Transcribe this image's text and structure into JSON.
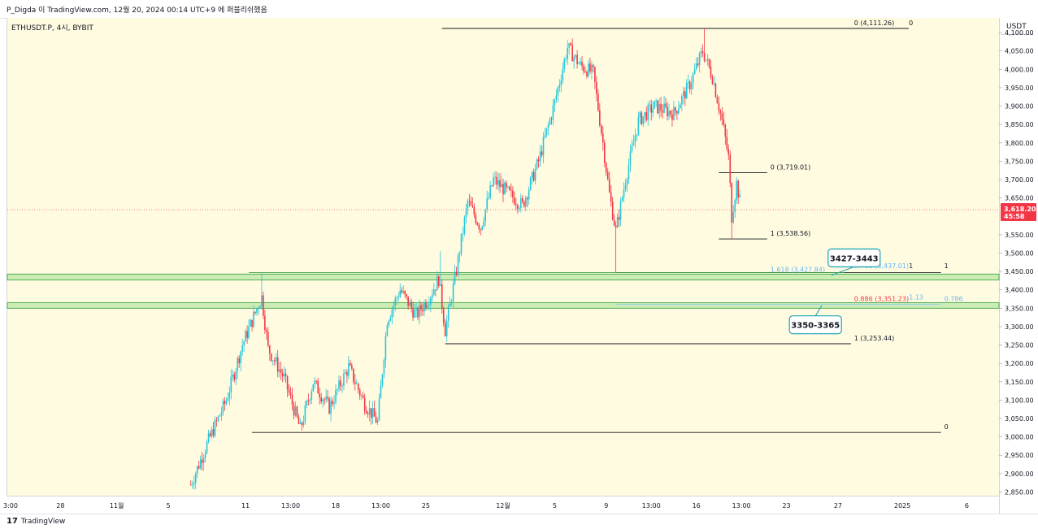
{
  "header": {
    "publish_info": "P_Digda 이 TradingView.com, 12월 20, 2024 00:14 UTC+9 에 퍼블리쉬했음"
  },
  "symbol": "ETHUSDT.P, 4시, BYBIT",
  "currency": "USDT",
  "current_price": {
    "value": "3,618.20",
    "countdown": "45:58",
    "color": "#f23645",
    "y": 3618.2
  },
  "footer": {
    "logo": "17",
    "brand": "TradingView"
  },
  "colors": {
    "up": "#26c6da",
    "down": "#f23645",
    "zone": "#b9e8a6",
    "zone_border": "#2e9c3a",
    "background": "#fffbe0"
  },
  "chart_data": {
    "type": "candlestick",
    "ylim": [
      2840,
      4140
    ],
    "y_ticks": [
      {
        "value": 4100,
        "label": "4,100.00"
      },
      {
        "value": 4050,
        "label": "4,050.00"
      },
      {
        "value": 4000,
        "label": "4,000.00"
      },
      {
        "value": 3950,
        "label": "3,950.00"
      },
      {
        "value": 3900,
        "label": "3,900.00"
      },
      {
        "value": 3850,
        "label": "3,850.00"
      },
      {
        "value": 3800,
        "label": "3,800.00"
      },
      {
        "value": 3750,
        "label": "3,750.00"
      },
      {
        "value": 3700,
        "label": "3,700.00"
      },
      {
        "value": 3650,
        "label": "3,650.00"
      },
      {
        "value": 3550,
        "label": "3,550.00"
      },
      {
        "value": 3500,
        "label": "3,500.00"
      },
      {
        "value": 3450,
        "label": "3,450.00"
      },
      {
        "value": 3400,
        "label": "3,400.00"
      },
      {
        "value": 3350,
        "label": "3,350.00"
      },
      {
        "value": 3300,
        "label": "3,300.00"
      },
      {
        "value": 3250,
        "label": "3,250.00"
      },
      {
        "value": 3200,
        "label": "3,200.00"
      },
      {
        "value": 3150,
        "label": "3,150.00"
      },
      {
        "value": 3100,
        "label": "3,100.00"
      },
      {
        "value": 3050,
        "label": "3,050.00"
      },
      {
        "value": 3000,
        "label": "3,000.00"
      },
      {
        "value": 2950,
        "label": "2,950.00"
      },
      {
        "value": 2900,
        "label": "2,900.00"
      },
      {
        "value": 2850,
        "label": "2,850.00"
      }
    ],
    "x_ticks": [
      {
        "label": "3:00",
        "bar": 2
      },
      {
        "label": "28",
        "bar": 33
      },
      {
        "label": "11월",
        "bar": 68
      },
      {
        "label": "5",
        "bar": 100
      },
      {
        "label": "11",
        "bar": 148
      },
      {
        "label": "13:00",
        "bar": 176
      },
      {
        "label": "18",
        "bar": 204
      },
      {
        "label": "13:00",
        "bar": 232
      },
      {
        "label": "25",
        "bar": 260
      },
      {
        "label": "12월",
        "bar": 308
      },
      {
        "label": "5",
        "bar": 340
      },
      {
        "label": "9",
        "bar": 372
      },
      {
        "label": "13:00",
        "bar": 400
      },
      {
        "label": "16",
        "bar": 428
      },
      {
        "label": "13:00",
        "bar": 456
      },
      {
        "label": "23",
        "bar": 484
      },
      {
        "label": "27",
        "bar": 516
      },
      {
        "label": "2025",
        "bar": 556
      },
      {
        "label": "6",
        "bar": 596
      }
    ],
    "bar_range": [
      0,
      616
    ],
    "zones": [
      {
        "from": 3427,
        "to": 3443
      },
      {
        "from": 3350,
        "to": 3365
      }
    ],
    "callouts": [
      {
        "label": "3427-3443",
        "bar": 526,
        "price": 3487,
        "tip_bar": 512,
        "tip_price": 3440
      },
      {
        "label": "3350-3365",
        "bar": 502,
        "price": 3305,
        "tip_bar": 506,
        "tip_price": 3358
      }
    ],
    "fib_lines": [
      {
        "price": 4111.26,
        "from_bar": 270,
        "to_bar": 560,
        "color": "#131722"
      },
      {
        "price": 3719.01,
        "from_bar": 442,
        "to_bar": 472,
        "color": "#131722"
      },
      {
        "price": 3538.56,
        "from_bar": 442,
        "to_bar": 472,
        "color": "#131722"
      },
      {
        "price": 3447,
        "from_bar": 378,
        "to_bar": 580,
        "color": "#131722"
      },
      {
        "price": 3253.44,
        "from_bar": 272,
        "to_bar": 524,
        "color": "#131722"
      },
      {
        "price": 3012,
        "from_bar": 152,
        "to_bar": 580,
        "color": "#131722"
      },
      {
        "price": 3447,
        "from_bar": 150,
        "to_bar": 520,
        "color": "#2e9c3a"
      },
      {
        "price": 3361,
        "from_bar": 378,
        "to_bar": 580,
        "color": "#90caf9"
      }
    ],
    "fib_labels": [
      {
        "text": "0 (4,111.26)",
        "bar": 526,
        "price": 4111.26,
        "color": "#131722"
      },
      {
        "text": "0",
        "bar": 560,
        "price": 4111.26,
        "color": "#131722"
      },
      {
        "text": "0 (3,719.01)",
        "bar": 474,
        "price": 3719.01,
        "color": "#131722"
      },
      {
        "text": "1 (3,538.56)",
        "bar": 474,
        "price": 3538.56,
        "color": "#131722"
      },
      {
        "text": "1.618 (3,427.84)",
        "bar": 474,
        "price": 3440,
        "color": "#64b5f6"
      },
      {
        "text": "0.786 (3,437.01)",
        "bar": 526,
        "price": 3450,
        "color": "#64b5f6"
      },
      {
        "text": "1",
        "bar": 560,
        "price": 3450,
        "color": "#131722"
      },
      {
        "text": "1",
        "bar": 582,
        "price": 3450,
        "color": "#131722"
      },
      {
        "text": "0.886 (3,351.23)",
        "bar": 526,
        "price": 3361,
        "color": "#f23645"
      },
      {
        "text": "1.13",
        "bar": 560,
        "price": 3365,
        "color": "#64b5f6"
      },
      {
        "text": "0.786",
        "bar": 582,
        "price": 3361,
        "color": "#64b5f6"
      },
      {
        "text": "1 (3,253.44)",
        "bar": 526,
        "price": 3253.44,
        "color": "#131722"
      },
      {
        "text": "0",
        "bar": 582,
        "price": 3012,
        "color": "#131722"
      }
    ],
    "waypoints": [
      {
        "bar": 114,
        "price": 2870
      },
      {
        "bar": 124,
        "price": 2980
      },
      {
        "bar": 136,
        "price": 3100
      },
      {
        "bar": 146,
        "price": 3250
      },
      {
        "bar": 156,
        "price": 3360
      },
      {
        "bar": 158,
        "price": 3380
      },
      {
        "bar": 162,
        "price": 3240
      },
      {
        "bar": 172,
        "price": 3160
      },
      {
        "bar": 182,
        "price": 3020
      },
      {
        "bar": 190,
        "price": 3150
      },
      {
        "bar": 200,
        "price": 3080
      },
      {
        "bar": 212,
        "price": 3190
      },
      {
        "bar": 222,
        "price": 3090
      },
      {
        "bar": 230,
        "price": 3040
      },
      {
        "bar": 236,
        "price": 3320
      },
      {
        "bar": 244,
        "price": 3400
      },
      {
        "bar": 254,
        "price": 3330
      },
      {
        "bar": 262,
        "price": 3380
      },
      {
        "bar": 268,
        "price": 3430
      },
      {
        "bar": 272,
        "price": 3290
      },
      {
        "bar": 278,
        "price": 3430
      },
      {
        "bar": 286,
        "price": 3640
      },
      {
        "bar": 294,
        "price": 3570
      },
      {
        "bar": 302,
        "price": 3700
      },
      {
        "bar": 312,
        "price": 3660
      },
      {
        "bar": 320,
        "price": 3630
      },
      {
        "bar": 330,
        "price": 3750
      },
      {
        "bar": 340,
        "price": 3910
      },
      {
        "bar": 348,
        "price": 4060
      },
      {
        "bar": 356,
        "price": 4010
      },
      {
        "bar": 364,
        "price": 3990
      },
      {
        "bar": 370,
        "price": 3800
      },
      {
        "bar": 374,
        "price": 3660
      },
      {
        "bar": 378,
        "price": 3560
      },
      {
        "bar": 384,
        "price": 3700
      },
      {
        "bar": 392,
        "price": 3860
      },
      {
        "bar": 402,
        "price": 3900
      },
      {
        "bar": 414,
        "price": 3880
      },
      {
        "bar": 424,
        "price": 3960
      },
      {
        "bar": 432,
        "price": 4050
      },
      {
        "bar": 438,
        "price": 3980
      },
      {
        "bar": 444,
        "price": 3860
      },
      {
        "bar": 448,
        "price": 3760
      },
      {
        "bar": 450,
        "price": 3600
      },
      {
        "bar": 453,
        "price": 3690
      },
      {
        "bar": 456,
        "price": 3618
      }
    ],
    "spikes": [
      {
        "bar": 158,
        "high": 3445
      },
      {
        "bar": 269,
        "high": 3505
      },
      {
        "bar": 378,
        "low": 3447
      },
      {
        "bar": 433,
        "high": 4111
      },
      {
        "bar": 450,
        "low": 3538
      }
    ]
  }
}
